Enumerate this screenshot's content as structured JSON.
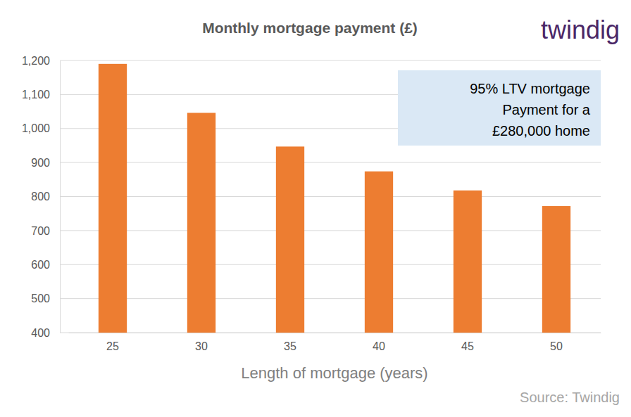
{
  "chart_data": {
    "type": "bar",
    "title": "Monthly mortgage payment (£)",
    "categories": [
      25,
      30,
      35,
      40,
      45,
      50
    ],
    "values": [
      1190,
      1046,
      947,
      874,
      818,
      772
    ],
    "color": "#ed7d31",
    "ylim": [
      400,
      1200
    ],
    "yticks": [
      400,
      500,
      600,
      700,
      800,
      900,
      {
        "value": 1000,
        "label": "1,000"
      },
      {
        "value": 1100,
        "label": "1,100"
      },
      {
        "value": 1200,
        "label": "1,200"
      }
    ],
    "grid": true,
    "x_label": "Length of mortgage (years)",
    "annotations": [
      "95% LTV mortgage",
      "Payment for a",
      "£280,000 home"
    ],
    "logo": "twindig",
    "source": "Source: Twindig"
  }
}
